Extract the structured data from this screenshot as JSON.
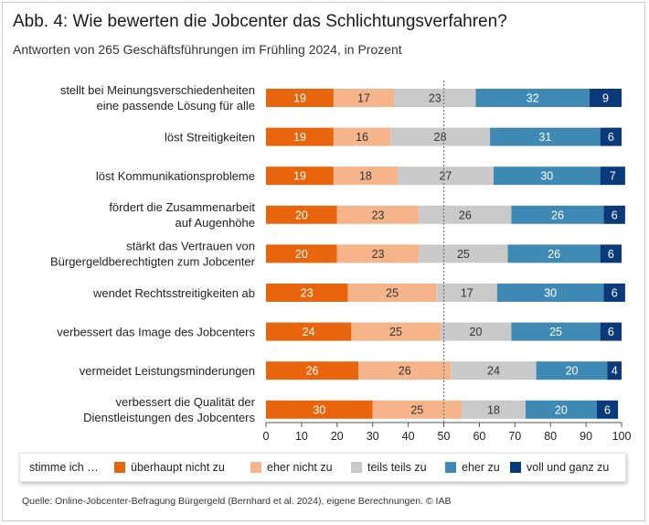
{
  "title": "Abb. 4: Wie bewerten die Jobcenter das Schlichtungsverfahren?",
  "subtitle": "Antworten von 265 Geschäftsführungen im Frühling 2024, in Prozent",
  "footer": "Quelle: Online-Jobcenter-Befragung Bürgergeld (Bernhard et al. 2024), eigene Berechnungen.  © IAB",
  "legend": {
    "prefix": "stimme ich …",
    "items": [
      "überhaupt nicht zu",
      "eher nicht zu",
      "teils teils zu",
      "eher zu",
      "voll und ganz zu"
    ]
  },
  "chart_data": {
    "type": "bar",
    "stacked": true,
    "orientation": "horizontal",
    "title": "Abb. 4: Wie bewerten die Jobcenter das Schlichtungsverfahren?",
    "xlim": [
      0,
      100
    ],
    "xticks": [
      0,
      10,
      20,
      30,
      40,
      50,
      60,
      70,
      80,
      90,
      100
    ],
    "reference_line": 50,
    "categories": [
      [
        "stellt bei Meinungsverschiedenheiten",
        "eine passende Lösung für alle"
      ],
      [
        "löst Streitigkeiten"
      ],
      [
        "löst Kommunikationsprobleme"
      ],
      [
        "fördert die Zusammenarbeit",
        "auf Augenhöhe"
      ],
      [
        "stärkt das Vertrauen von",
        "Bürgergeldberechtigten zum Jobcenter"
      ],
      [
        "wendet Rechtsstreitigkeiten ab"
      ],
      [
        "verbessert das Image des Jobcenters"
      ],
      [
        "vermeidet Leistungsminderungen"
      ],
      [
        "verbessert die Qualität der",
        "Dienstleistungen des Jobcenters"
      ]
    ],
    "series": [
      {
        "name": "überhaupt nicht zu",
        "color": "#e8650e",
        "label_color": "#ffffff",
        "values": [
          19,
          19,
          19,
          20,
          20,
          23,
          24,
          26,
          30
        ]
      },
      {
        "name": "eher nicht zu",
        "color": "#f5b48a",
        "label_color": "#333333",
        "values": [
          17,
          16,
          18,
          23,
          23,
          25,
          25,
          26,
          25
        ]
      },
      {
        "name": "teils teils zu",
        "color": "#c9c9c9",
        "label_color": "#333333",
        "values": [
          23,
          28,
          27,
          26,
          25,
          17,
          20,
          24,
          18
        ]
      },
      {
        "name": "eher zu",
        "color": "#3e8ab5",
        "label_color": "#ffffff",
        "values": [
          32,
          31,
          30,
          26,
          26,
          30,
          25,
          20,
          20
        ]
      },
      {
        "name": "voll und ganz zu",
        "color": "#0a3a7a",
        "label_color": "#ffffff",
        "values": [
          9,
          6,
          7,
          6,
          6,
          6,
          6,
          4,
          6
        ]
      }
    ]
  }
}
